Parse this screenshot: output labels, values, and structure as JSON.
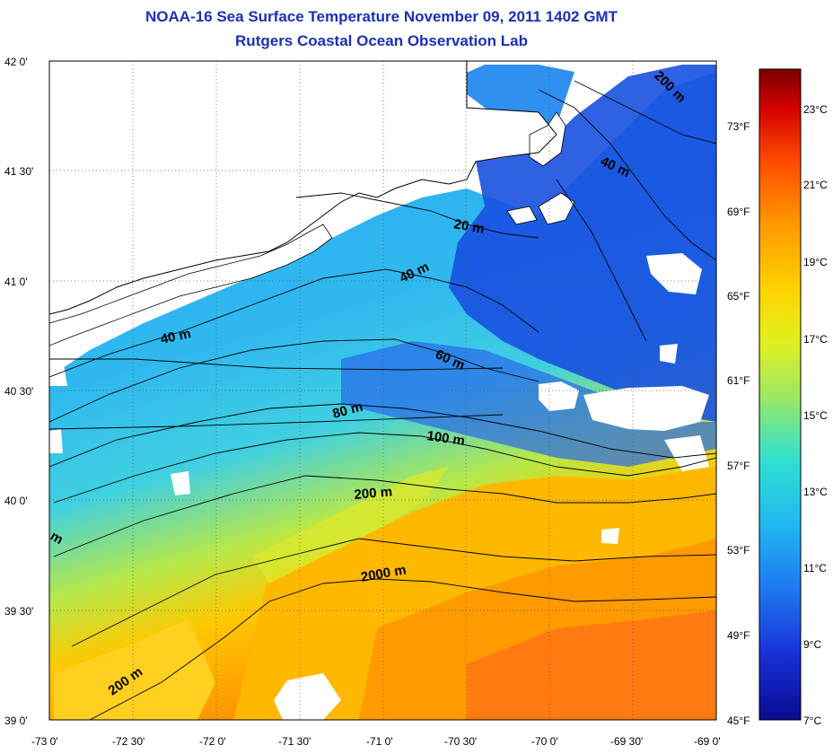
{
  "title": {
    "line1": "NOAA-16 Sea Surface Temperature November 09, 2011 1402 GMT",
    "line2": "Rutgers Coastal Ocean Observation Lab"
  },
  "axes": {
    "lat_labels": [
      "42 0'",
      "41 30'",
      "41 0'",
      "40 30'",
      "40 0'",
      "39 30'",
      "39 0'"
    ],
    "lon_labels": [
      "-73 0'",
      "-72 30'",
      "-72 0'",
      "-71 30'",
      "-71 0'",
      "-70 30'",
      "-70 0'",
      "-69 30'",
      "-69 0'"
    ]
  },
  "colorbar": {
    "fahrenheit_labels": [
      "73°F",
      "69°F",
      "65°F",
      "61°F",
      "57°F",
      "53°F",
      "49°F",
      "45°F"
    ],
    "celsius_labels": [
      "23°C",
      "21°C",
      "19°C",
      "17°C",
      "15°C",
      "13°C",
      "11°C",
      "9°C",
      "7°C"
    ],
    "colors": [
      "#7a0000",
      "#d40000",
      "#ff4a00",
      "#ff9a00",
      "#ffd400",
      "#e0f020",
      "#9fe860",
      "#30e0d0",
      "#20b8f0",
      "#1e78f0",
      "#1830d8",
      "#0a0a90"
    ]
  },
  "contour_labels": {
    "c20": "20 m",
    "c40a": "40 m",
    "c40b": "40 m",
    "c40c": "40 m",
    "c60": "60 m",
    "c80": "80 m",
    "c100": "100 m",
    "c200a": "200 m",
    "c200b": "200 m",
    "c200c": "200 m",
    "c2000": "2000 m",
    "cm": "m"
  }
}
